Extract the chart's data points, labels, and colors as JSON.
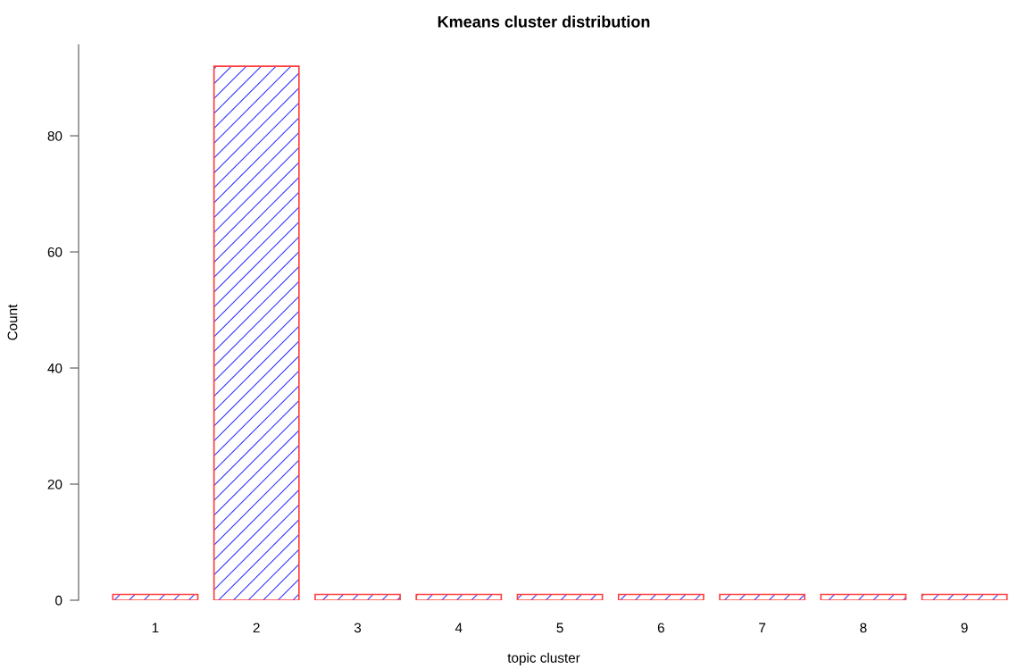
{
  "chart_data": {
    "type": "bar",
    "title": "Kmeans cluster distribution",
    "xlabel": "topic cluster",
    "ylabel": "Count",
    "categories": [
      "1",
      "2",
      "3",
      "4",
      "5",
      "6",
      "7",
      "8",
      "9"
    ],
    "values": [
      1,
      92,
      1,
      1,
      1,
      1,
      1,
      1,
      1
    ],
    "color": "#ff4040",
    "ylim": [
      0,
      95.7
    ],
    "yticks": [
      0,
      20,
      40,
      60,
      80
    ],
    "grid": false
  }
}
